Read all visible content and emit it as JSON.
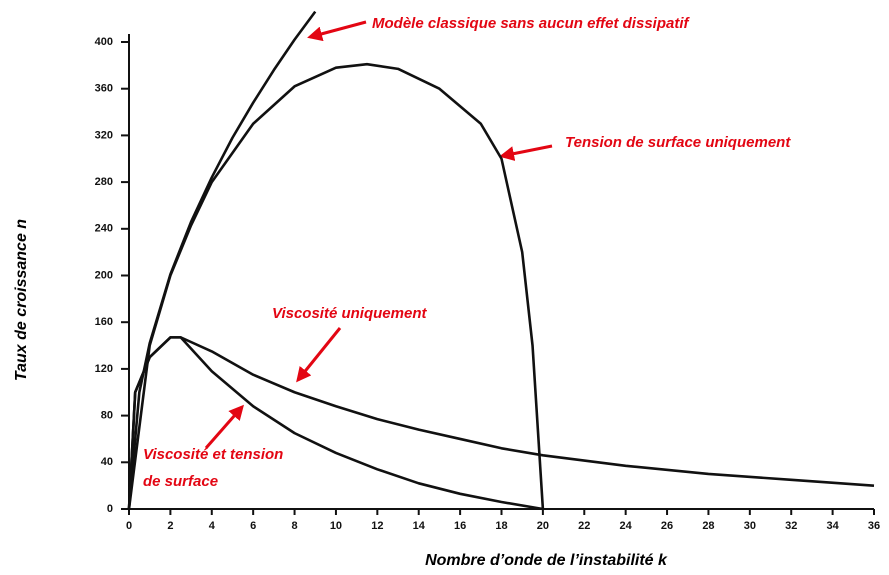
{
  "chart_data": {
    "type": "line",
    "x_label": "Nombre d’onde de l’instabilité k",
    "y_label": "Taux de croissance n",
    "xlim": [
      0,
      36
    ],
    "ylim": [
      0,
      400
    ],
    "xticks": [
      0,
      2,
      4,
      6,
      8,
      10,
      12,
      14,
      16,
      18,
      20,
      22,
      24,
      26,
      28,
      30,
      32,
      34,
      36
    ],
    "yticks": [
      0,
      40,
      80,
      120,
      160,
      200,
      240,
      280,
      320,
      360,
      400
    ],
    "color": "#111111",
    "series": [
      {
        "label_lines": [
          "Modèle classique sans aucun effet dissipatif"
        ],
        "x": [
          0,
          0.5,
          1,
          2,
          3,
          4,
          5,
          6,
          7,
          8,
          9
        ],
        "values": [
          0,
          100,
          142,
          201,
          246,
          284,
          318,
          348,
          376,
          402,
          426
        ]
      },
      {
        "label_lines": [
          "Tension de surface uniquement"
        ],
        "x": [
          0,
          1,
          2,
          3,
          4,
          6,
          8,
          10,
          11.5,
          13,
          15,
          17,
          18,
          19,
          19.5,
          20
        ],
        "values": [
          0,
          140,
          200,
          243,
          280,
          330,
          362,
          378,
          381,
          377,
          360,
          330,
          300,
          220,
          140,
          0
        ]
      },
      {
        "label_lines": [
          "Viscosité uniquement"
        ],
        "x": [
          0,
          0.3,
          1,
          2,
          2.5,
          4,
          6,
          8,
          10,
          12,
          14,
          16,
          18,
          20,
          24,
          28,
          32,
          36
        ],
        "values": [
          0,
          100,
          130,
          147,
          147,
          135,
          115,
          100,
          88,
          77,
          68,
          60,
          52,
          46,
          37,
          30,
          25,
          20
        ]
      },
      {
        "label_lines": [
          "Viscosité et tension",
          "de surface"
        ],
        "x": [
          0,
          0.3,
          1,
          2,
          2.5,
          4,
          6,
          8,
          10,
          12,
          14,
          16,
          18,
          20
        ],
        "values": [
          0,
          100,
          130,
          147,
          147,
          118,
          88,
          65,
          48,
          34,
          22,
          13,
          6,
          0
        ]
      }
    ]
  }
}
